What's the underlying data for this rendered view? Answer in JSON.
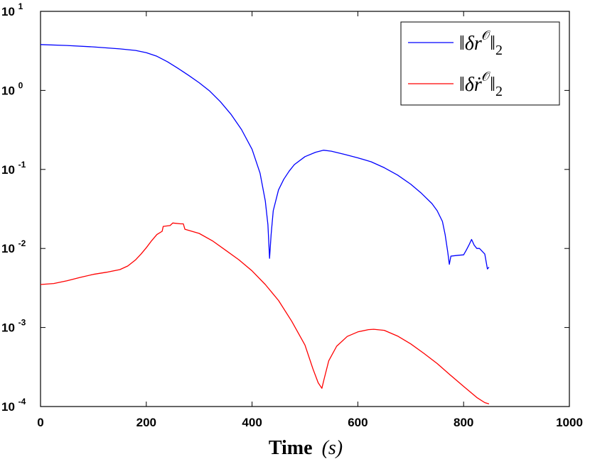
{
  "chart_data": {
    "type": "line",
    "title": "",
    "xlabel": "Time",
    "xlabel_unit": "s",
    "ylabel": "",
    "xlim": [
      0,
      1000
    ],
    "ylim": [
      0.0001,
      10
    ],
    "yscale": "log",
    "grid": false,
    "legend_position": "top-right",
    "x_ticks": [
      "0",
      "200",
      "400",
      "600",
      "800",
      "1000"
    ],
    "y_ticks": [
      {
        "base": "10",
        "exp": "1"
      },
      {
        "base": "10",
        "exp": "0"
      },
      {
        "base": "10",
        "exp": "-1"
      },
      {
        "base": "10",
        "exp": "-2"
      },
      {
        "base": "10",
        "exp": "-3"
      },
      {
        "base": "10",
        "exp": "-4"
      }
    ],
    "series": [
      {
        "name": "‖δr^O‖₂",
        "legend": {
          "norm": "‖",
          "delta": "δ",
          "var": "r",
          "sup": "𝒪",
          "close": "‖",
          "sub": "2"
        },
        "color": "#0000ff",
        "points": [
          [
            0,
            3.8
          ],
          [
            50,
            3.7
          ],
          [
            100,
            3.55
          ],
          [
            150,
            3.35
          ],
          [
            180,
            3.2
          ],
          [
            200,
            3.0
          ],
          [
            220,
            2.7
          ],
          [
            240,
            2.3
          ],
          [
            260,
            1.9
          ],
          [
            280,
            1.55
          ],
          [
            300,
            1.25
          ],
          [
            320,
            0.98
          ],
          [
            340,
            0.72
          ],
          [
            360,
            0.5
          ],
          [
            380,
            0.32
          ],
          [
            400,
            0.18
          ],
          [
            415,
            0.09
          ],
          [
            425,
            0.04
          ],
          [
            430,
            0.02
          ],
          [
            433,
            0.0075
          ],
          [
            436,
            0.015
          ],
          [
            440,
            0.03
          ],
          [
            450,
            0.055
          ],
          [
            460,
            0.075
          ],
          [
            470,
            0.095
          ],
          [
            480,
            0.115
          ],
          [
            500,
            0.145
          ],
          [
            520,
            0.165
          ],
          [
            535,
            0.175
          ],
          [
            550,
            0.17
          ],
          [
            575,
            0.155
          ],
          [
            600,
            0.14
          ],
          [
            625,
            0.125
          ],
          [
            650,
            0.105
          ],
          [
            675,
            0.085
          ],
          [
            700,
            0.065
          ],
          [
            720,
            0.05
          ],
          [
            740,
            0.037
          ],
          [
            750,
            0.03
          ],
          [
            760,
            0.022
          ],
          [
            765,
            0.015
          ],
          [
            770,
            0.009
          ],
          [
            773,
            0.0063
          ],
          [
            776,
            0.008
          ],
          [
            790,
            0.0082
          ],
          [
            800,
            0.0083
          ],
          [
            805,
            0.0095
          ],
          [
            810,
            0.011
          ],
          [
            815,
            0.013
          ],
          [
            820,
            0.011
          ],
          [
            825,
            0.01
          ],
          [
            830,
            0.01
          ],
          [
            840,
            0.0085
          ],
          [
            845,
            0.0055
          ],
          [
            848,
            0.0058
          ]
        ]
      },
      {
        "name": "‖δṙ^O‖₂",
        "legend": {
          "norm": "‖",
          "delta": "δ",
          "var": "ṙ",
          "sup": "𝒪",
          "close": "‖",
          "sub": "2"
        },
        "color": "#ff0000",
        "points": [
          [
            0,
            0.0035
          ],
          [
            25,
            0.0036
          ],
          [
            50,
            0.0039
          ],
          [
            75,
            0.0043
          ],
          [
            100,
            0.0047
          ],
          [
            125,
            0.005
          ],
          [
            150,
            0.0054
          ],
          [
            165,
            0.006
          ],
          [
            180,
            0.0072
          ],
          [
            190,
            0.0085
          ],
          [
            200,
            0.0102
          ],
          [
            210,
            0.0125
          ],
          [
            220,
            0.015
          ],
          [
            230,
            0.0165
          ],
          [
            232,
            0.019
          ],
          [
            245,
            0.0195
          ],
          [
            250,
            0.021
          ],
          [
            265,
            0.0205
          ],
          [
            270,
            0.0205
          ],
          [
            273,
            0.0175
          ],
          [
            300,
            0.0155
          ],
          [
            325,
            0.0125
          ],
          [
            350,
            0.0095
          ],
          [
            375,
            0.0072
          ],
          [
            400,
            0.0052
          ],
          [
            425,
            0.0035
          ],
          [
            450,
            0.0022
          ],
          [
            475,
            0.0012
          ],
          [
            500,
            0.0006
          ],
          [
            515,
            0.0003
          ],
          [
            525,
            0.0002
          ],
          [
            532,
            0.00017
          ],
          [
            536,
            0.00022
          ],
          [
            545,
            0.00038
          ],
          [
            560,
            0.00058
          ],
          [
            580,
            0.00077
          ],
          [
            600,
            0.00088
          ],
          [
            620,
            0.00094
          ],
          [
            630,
            0.00095
          ],
          [
            650,
            0.00092
          ],
          [
            675,
            0.00078
          ],
          [
            700,
            0.00062
          ],
          [
            725,
            0.00047
          ],
          [
            750,
            0.00035
          ],
          [
            775,
            0.00025
          ],
          [
            800,
            0.00018
          ],
          [
            825,
            0.00013
          ],
          [
            840,
            0.000112
          ],
          [
            848,
            0.000108
          ]
        ]
      }
    ]
  }
}
